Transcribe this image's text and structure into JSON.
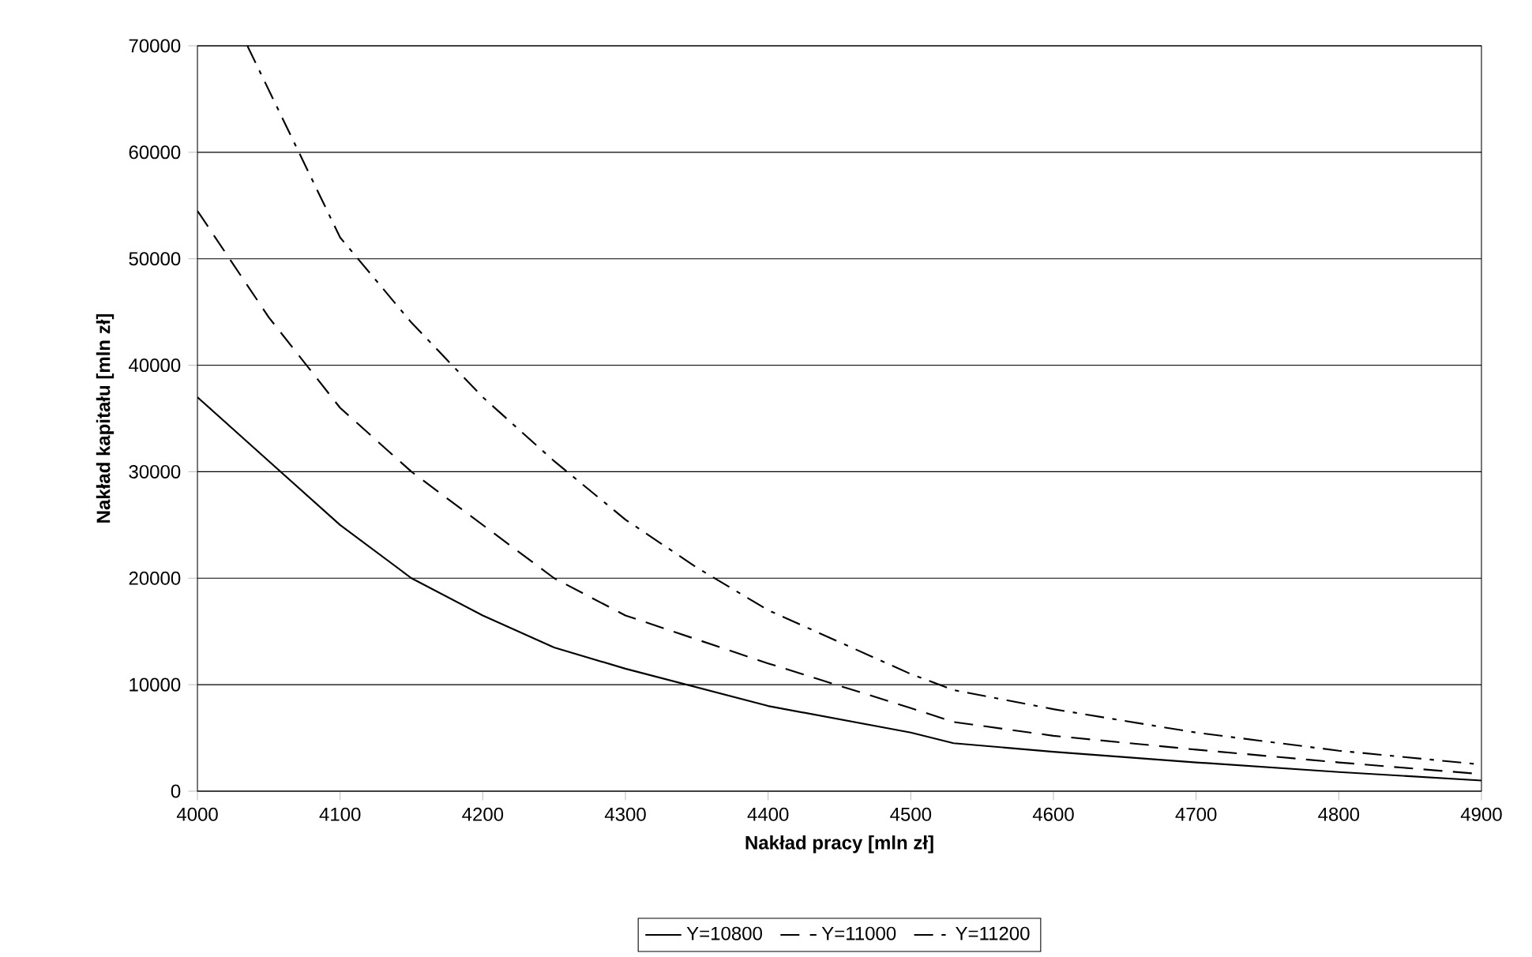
{
  "chart_data": {
    "type": "line",
    "xlabel": "Nakład pracy [mln zł]",
    "ylabel": "Nakład kapitału  [mln zł]",
    "xlim": [
      4000,
      4900
    ],
    "ylim": [
      0,
      70000
    ],
    "xticks": [
      4000,
      4100,
      4200,
      4300,
      4400,
      4500,
      4600,
      4700,
      4800,
      4900
    ],
    "yticks": [
      0,
      10000,
      20000,
      30000,
      40000,
      50000,
      60000,
      70000
    ],
    "grid": "y",
    "legend": "bottom",
    "marker": "none",
    "series": [
      {
        "name": "Y=10800",
        "color": "#000000",
        "line_style": "solid",
        "x": [
          4000,
          4050,
          4100,
          4150,
          4200,
          4250,
          4300,
          4400,
          4500,
          4530,
          4600,
          4700,
          4800,
          4900
        ],
        "values": [
          37000,
          31000,
          25000,
          20000,
          16500,
          13500,
          11500,
          8000,
          5500,
          4500,
          3700,
          2700,
          1800,
          1000
        ]
      },
      {
        "name": "Y=11000",
        "color": "#000000",
        "line_style": "dashed",
        "x": [
          4000,
          4050,
          4100,
          4150,
          4200,
          4250,
          4300,
          4400,
          4500,
          4530,
          4600,
          4700,
          4800,
          4900
        ],
        "values": [
          54500,
          44500,
          36000,
          30000,
          25000,
          20000,
          16500,
          12000,
          7800,
          6500,
          5200,
          3900,
          2700,
          1600
        ]
      },
      {
        "name": "Y=11200",
        "color": "#000000",
        "line_style": "dashdot",
        "x": [
          4035,
          4100,
          4150,
          4200,
          4250,
          4300,
          4350,
          4400,
          4500,
          4530,
          4600,
          4700,
          4800,
          4900
        ],
        "values": [
          70000,
          52000,
          44000,
          37000,
          31000,
          25500,
          21000,
          17000,
          11000,
          9500,
          7700,
          5500,
          3800,
          2500
        ]
      }
    ]
  }
}
